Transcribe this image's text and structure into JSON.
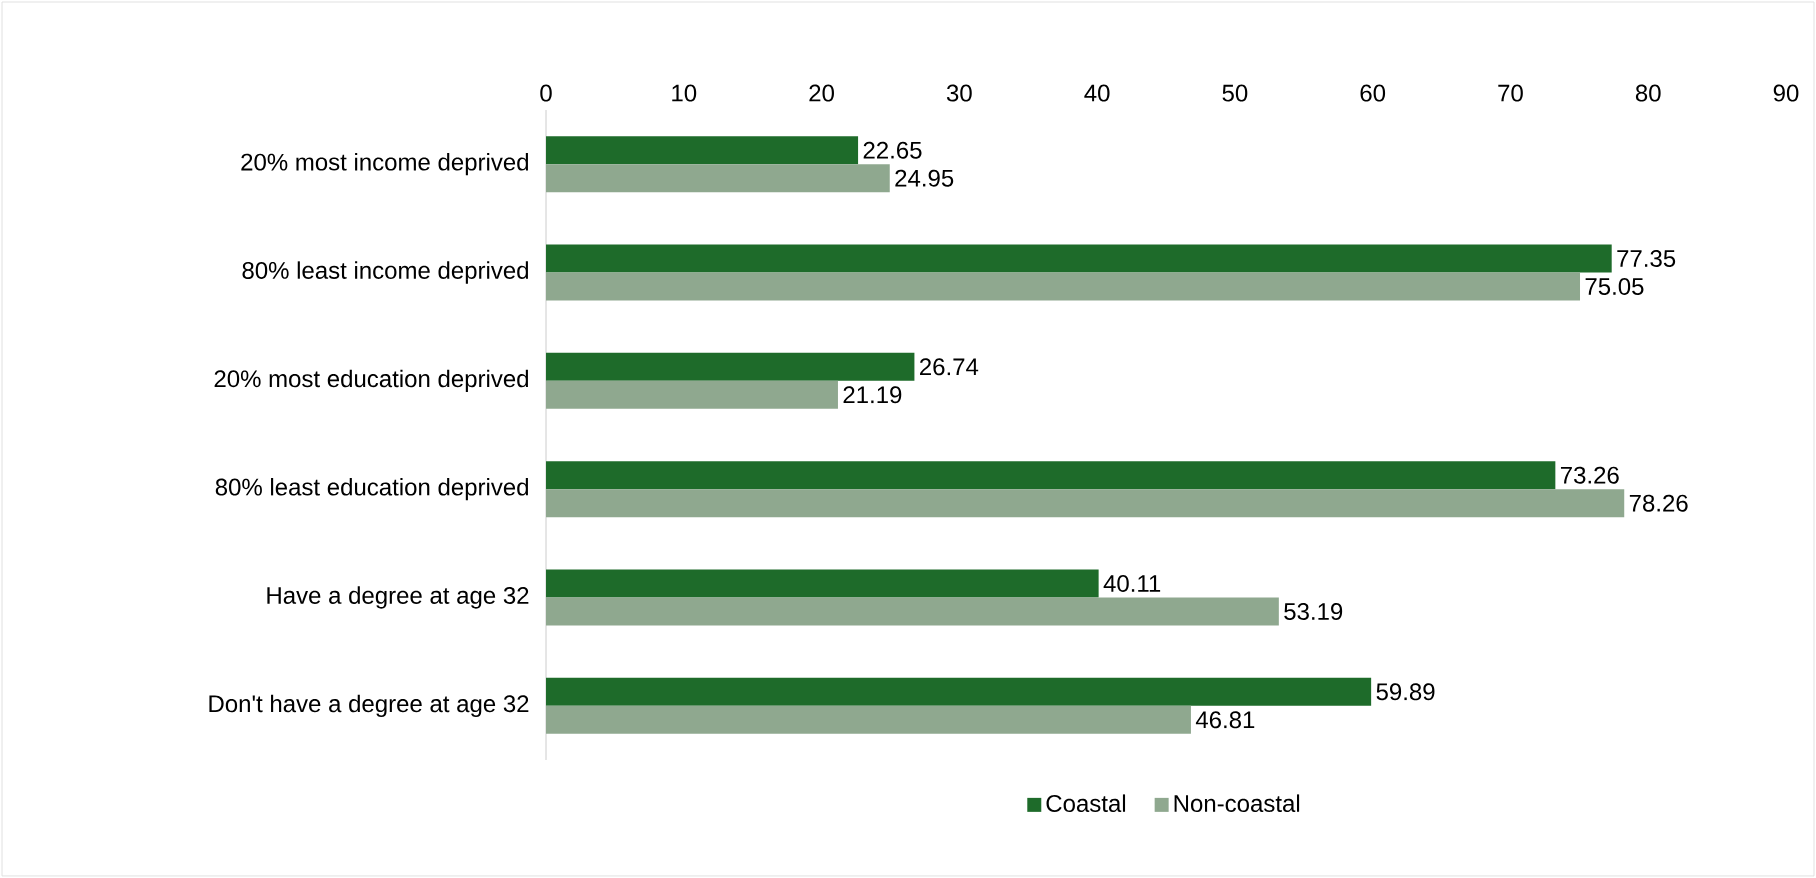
{
  "chart_data": {
    "type": "bar",
    "orientation": "horizontal",
    "categories": [
      "20% most income deprived",
      "80% least income deprived",
      "20% most education deprived",
      "80% least education deprived",
      "Have a degree at age 32",
      "Don't have a degree at age 32"
    ],
    "series": [
      {
        "name": "Coastal",
        "color": "#1e6b2a",
        "values": [
          22.65,
          77.35,
          26.74,
          73.26,
          40.11,
          59.89
        ]
      },
      {
        "name": "Non-coastal",
        "color": "#8fa88f",
        "values": [
          24.95,
          75.05,
          21.19,
          78.26,
          53.19,
          46.81
        ]
      }
    ],
    "xlim": [
      0,
      90
    ],
    "xticks": [
      0,
      10,
      20,
      30,
      40,
      50,
      60,
      70,
      80,
      90
    ],
    "data_labels": true,
    "legend": "bottom",
    "grid": false
  }
}
